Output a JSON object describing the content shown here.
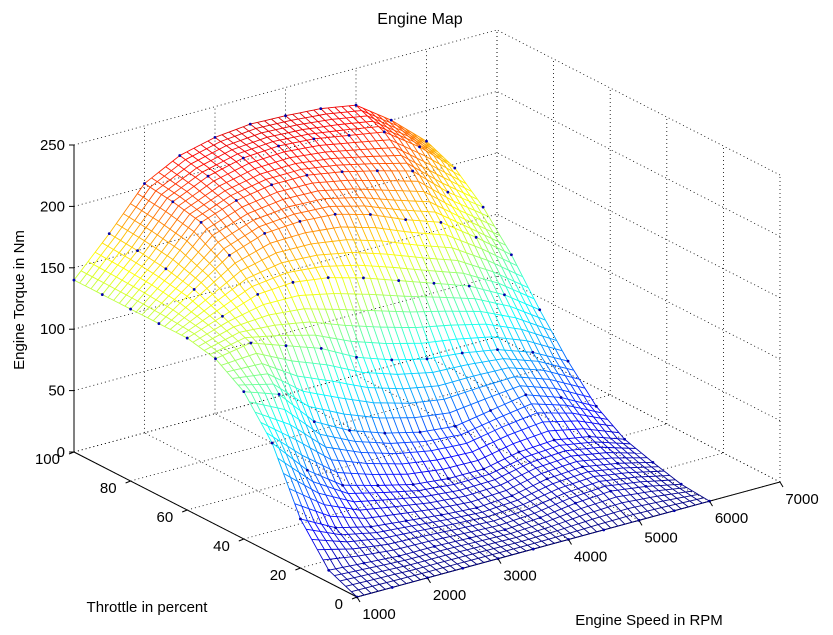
{
  "chart_data": {
    "type": "surface",
    "title": "Engine Map",
    "xlabel": "Engine Speed in RPM",
    "ylabel": "Throttle in percent",
    "zlabel": "Engine Torque in Nm",
    "xlim": [
      1000,
      7000
    ],
    "ylim": [
      0,
      100
    ],
    "zlim": [
      0,
      250
    ],
    "x_ticks": [
      1000,
      2000,
      3000,
      4000,
      5000,
      6000,
      7000
    ],
    "y_ticks": [
      0,
      20,
      40,
      60,
      80,
      100
    ],
    "z_ticks": [
      0,
      50,
      100,
      150,
      200,
      250
    ],
    "grid": true,
    "colormap": "jet",
    "speeds": [
      1000,
      1500,
      2000,
      2500,
      3000,
      3500,
      4000,
      4500,
      5000,
      5500,
      6000
    ],
    "throttle": [
      0,
      10,
      20,
      30,
      40,
      50,
      60,
      70,
      80,
      90,
      100
    ],
    "torque": [
      [
        0,
        0,
        0,
        0,
        0,
        0,
        0,
        0,
        0,
        0,
        0
      ],
      [
        10,
        8,
        6,
        6,
        5,
        4,
        6,
        10,
        12,
        8,
        2
      ],
      [
        40,
        25,
        18,
        15,
        12,
        10,
        12,
        18,
        20,
        15,
        8
      ],
      [
        90,
        60,
        40,
        32,
        25,
        22,
        22,
        28,
        30,
        25,
        15
      ],
      [
        120,
        110,
        80,
        65,
        55,
        48,
        45,
        50,
        55,
        45,
        30
      ],
      [
        135,
        140,
        130,
        120,
        105,
        95,
        88,
        85,
        80,
        70,
        55
      ],
      [
        140,
        150,
        160,
        162,
        158,
        150,
        140,
        130,
        120,
        105,
        85
      ],
      [
        140,
        160,
        180,
        190,
        192,
        190,
        182,
        170,
        160,
        140,
        118
      ],
      [
        140,
        165,
        195,
        205,
        210,
        210,
        205,
        198,
        190,
        165,
        145
      ],
      [
        140,
        168,
        200,
        213,
        220,
        222,
        220,
        215,
        210,
        190,
        165
      ],
      [
        140,
        170,
        203,
        218,
        225,
        228,
        227,
        225,
        220,
        200,
        175
      ]
    ]
  }
}
